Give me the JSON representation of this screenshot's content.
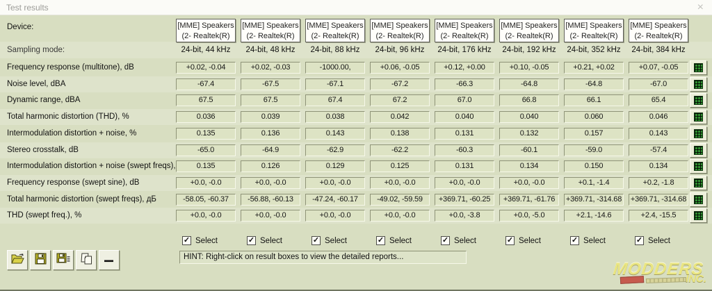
{
  "window": {
    "title": "Test results",
    "close_glyph": "×"
  },
  "colors": {
    "background": "#d8dec1",
    "header_box_bg": "#fffefa",
    "cell_bg": "#dde3c4",
    "grid_icon_green": "#2f8f2f",
    "watermark_yellow": "#ece777",
    "badge_red": "#c4453a"
  },
  "table": {
    "device_label": "Device:",
    "sampling_label": "Sampling mode:",
    "columns": [
      {
        "device_line1": "[MME] Speakers",
        "device_line2": "(2- Realtek(R)",
        "sampling": "24-bit, 44 kHz",
        "selected": true
      },
      {
        "device_line1": "[MME] Speakers",
        "device_line2": "(2- Realtek(R)",
        "sampling": "24-bit, 48 kHz",
        "selected": true
      },
      {
        "device_line1": "[MME] Speakers",
        "device_line2": "(2- Realtek(R)",
        "sampling": "24-bit, 88 kHz",
        "selected": true
      },
      {
        "device_line1": "[MME] Speakers",
        "device_line2": "(2- Realtek(R)",
        "sampling": "24-bit, 96 kHz",
        "selected": true
      },
      {
        "device_line1": "[MME] Speakers",
        "device_line2": "(2- Realtek(R)",
        "sampling": "24-bit, 176 kHz",
        "selected": true
      },
      {
        "device_line1": "[MME] Speakers",
        "device_line2": "(2- Realtek(R)",
        "sampling": "24-bit, 192 kHz",
        "selected": true
      },
      {
        "device_line1": "[MME] Speakers",
        "device_line2": "(2- Realtek(R)",
        "sampling": "24-bit, 352 kHz",
        "selected": true
      },
      {
        "device_line1": "[MME] Speakers",
        "device_line2": "(2- Realtek(R)",
        "sampling": "24-bit, 384 kHz",
        "selected": true
      }
    ],
    "rows": [
      {
        "label": "Frequency response (multitone), dB",
        "values": [
          "+0.02, -0.04",
          "+0.02, -0.03",
          "-1000.00,",
          "+0.06, -0.05",
          "+0.12, +0.00",
          "+0.10, -0.05",
          "+0.21, +0.02",
          "+0.07, -0.05"
        ]
      },
      {
        "label": "Noise level, dBA",
        "values": [
          "-67.4",
          "-67.5",
          "-67.1",
          "-67.2",
          "-66.3",
          "-64.8",
          "-64.8",
          "-67.0"
        ]
      },
      {
        "label": "Dynamic range, dBA",
        "values": [
          "67.5",
          "67.5",
          "67.4",
          "67.2",
          "67.0",
          "66.8",
          "66.1",
          "65.4"
        ]
      },
      {
        "label": "Total harmonic distortion (THD), %",
        "values": [
          "0.036",
          "0.039",
          "0.038",
          "0.042",
          "0.040",
          "0.040",
          "0.060",
          "0.046"
        ]
      },
      {
        "label": "Intermodulation distortion + noise, %",
        "values": [
          "0.135",
          "0.136",
          "0.143",
          "0.138",
          "0.131",
          "0.132",
          "0.157",
          "0.143"
        ]
      },
      {
        "label": "Stereo crosstalk, dB",
        "values": [
          "-65.0",
          "-64.9",
          "-62.9",
          "-62.2",
          "-60.3",
          "-60.1",
          "-59.0",
          "-57.4"
        ]
      },
      {
        "label": "Intermodulation distortion + noise (swept freqs),",
        "values": [
          "0.135",
          "0.126",
          "0.129",
          "0.125",
          "0.131",
          "0.134",
          "0.150",
          "0.134"
        ]
      },
      {
        "label": "Frequency response (swept sine), dB",
        "values": [
          "+0.0, -0.0",
          "+0.0, -0.0",
          "+0.0, -0.0",
          "+0.0, -0.0",
          "+0.0, -0.0",
          "+0.0, -0.0",
          "+0.1, -1.4",
          "+0.2, -1.8"
        ]
      },
      {
        "label": "Total harmonic distortion (swept freqs), дБ",
        "values": [
          "-58.05, -60.37",
          "-56.88, -60.13",
          "-47.24, -60.17",
          "-49.02, -59.59",
          "+369.71, -60.25",
          "+369.71, -61.76",
          "+369.71, -314.68",
          "+369.71, -314.68"
        ]
      },
      {
        "label": "THD (swept freq.), %",
        "values": [
          "+0.0, -0.0",
          "+0.0, -0.0",
          "+0.0, -0.0",
          "+0.0, -0.0",
          "+0.0, -3.8",
          "+0.0, -5.0",
          "+2.1, -14.6",
          "+2.4, -15.5"
        ]
      }
    ],
    "select_label": "Select",
    "check_glyph": "✓",
    "report_button_icon": "grid-report-icon"
  },
  "toolbar": {
    "buttons": [
      {
        "name": "open-report-button",
        "icon": "open-folder-icon"
      },
      {
        "name": "save-report-button",
        "icon": "save-floppy-icon"
      },
      {
        "name": "save-as-report-button",
        "icon": "save-floppy-list-icon"
      },
      {
        "name": "copy-report-button",
        "icon": "copy-pages-icon"
      },
      {
        "name": "remove-column-button",
        "icon": "minus-icon"
      }
    ]
  },
  "hint": "HINT: Right-click on result boxes to view the detailed reports...",
  "watermark": {
    "line1": "MODDERS",
    "line2": "INC."
  }
}
